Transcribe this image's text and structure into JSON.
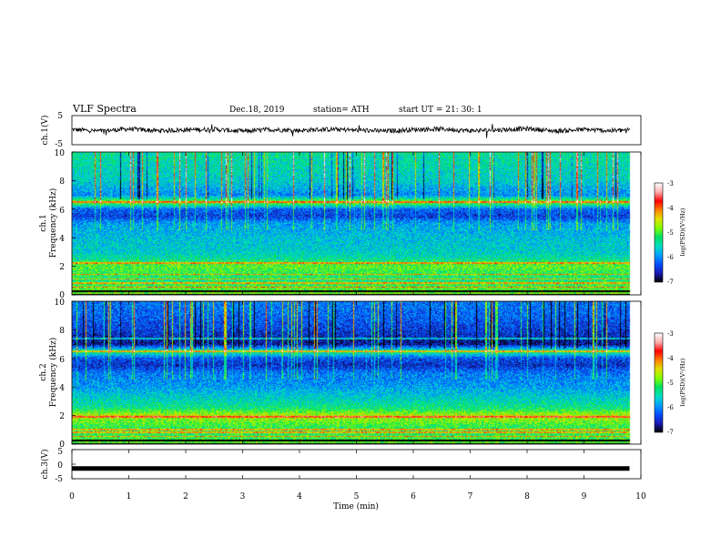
{
  "header": {
    "title": "VLF  Spectra",
    "date": "Dec.18,  2019",
    "station": "station=  ATH",
    "start": "start  UT  =    21:  30:  1"
  },
  "colorbar_label": "log(PSD)(V²/Hz)",
  "colorbar_scale": [
    "#000000",
    "#1a1ab4",
    "#0050ff",
    "#00a0ff",
    "#00e0c0",
    "#00e060",
    "#80ff00",
    "#e0e000",
    "#ff8000",
    "#ff0000",
    "#ffb0b0",
    "#ffffff"
  ],
  "chart_data": [
    {
      "type": "line",
      "name": "ch1-waveform",
      "ylabel": "ch.1(V)",
      "ylim": [
        -5,
        5
      ],
      "yticks": [
        "5",
        "-5"
      ],
      "xlim": [
        0,
        10
      ],
      "x": [
        0,
        0.5,
        1,
        1.5,
        2,
        2.5,
        3,
        3.5,
        4,
        4.5,
        5,
        5.5,
        6,
        6.5,
        7,
        7.5,
        8,
        8.5,
        9,
        9.5,
        9.8
      ],
      "y": [
        0.2,
        -0.3,
        0.4,
        -0.2,
        0.1,
        0.3,
        -0.4,
        0.2,
        -0.1,
        0.3,
        0.0,
        -0.3,
        0.2,
        0.4,
        -0.2,
        0.1,
        0.5,
        -0.3,
        0.2,
        -0.2,
        0.1
      ]
    },
    {
      "type": "heatmap",
      "name": "ch1-spectrogram",
      "ylabel": "ch.1",
      "ylabel2": "Frequency  (kHz)",
      "ylim": [
        0,
        10
      ],
      "yticks": [
        "10",
        "8",
        "6",
        "4",
        "2",
        "0"
      ],
      "xlim": [
        0,
        10
      ],
      "color_range": [
        -7,
        -3
      ],
      "colorbar_ticks": [
        "-3",
        "-4",
        "-5",
        "-6",
        "-7"
      ],
      "freq_profile_kHz": [
        0,
        0.5,
        1,
        2,
        2.5,
        3,
        4,
        5,
        5.5,
        6,
        6.5,
        7,
        8,
        9,
        10
      ],
      "level_profile": [
        -4.8,
        -5.0,
        -5.3,
        -4.9,
        -5.4,
        -5.6,
        -5.7,
        -5.9,
        -6.4,
        -6.2,
        -4.8,
        -6.0,
        -5.6,
        -5.5,
        -5.4
      ],
      "narrowband_lines_kHz": [
        0.5,
        0.8,
        1.1,
        1.4,
        2.2,
        6.5
      ]
    },
    {
      "type": "heatmap",
      "name": "ch2-spectrogram",
      "ylabel": "ch.2",
      "ylabel2": "Frequency  (kHz)",
      "ylim": [
        0,
        10
      ],
      "yticks": [
        "10",
        "8",
        "6",
        "4",
        "2",
        "0"
      ],
      "xlim": [
        0,
        10
      ],
      "color_range": [
        -7,
        -3
      ],
      "colorbar_ticks": [
        "-3",
        "-4",
        "-5",
        "-6",
        "-7"
      ],
      "freq_profile_kHz": [
        0,
        0.5,
        1,
        2,
        2.5,
        3,
        4,
        5,
        5.5,
        6,
        6.5,
        7,
        8,
        9,
        10
      ],
      "level_profile": [
        -4.9,
        -5.1,
        -5.2,
        -4.6,
        -5.3,
        -5.5,
        -5.9,
        -6.1,
        -6.5,
        -6.3,
        -5.2,
        -6.7,
        -6.4,
        -6.2,
        -6.1
      ],
      "narrowband_lines_kHz": [
        0.5,
        0.8,
        1.0,
        1.9,
        6.5,
        7.4
      ]
    },
    {
      "type": "line",
      "name": "ch3-waveform",
      "ylabel": "ch.3(V)",
      "ylim": [
        -5,
        5
      ],
      "yticks": [
        "5",
        "0",
        "-5"
      ],
      "xlim": [
        0,
        10
      ],
      "xlabel": "Time  (min)",
      "xticks": [
        "0",
        "1",
        "2",
        "3",
        "4",
        "5",
        "6",
        "7",
        "8",
        "9",
        "10"
      ],
      "x": [
        0,
        9.8
      ],
      "y": [
        -1.5,
        -1.5
      ]
    }
  ]
}
